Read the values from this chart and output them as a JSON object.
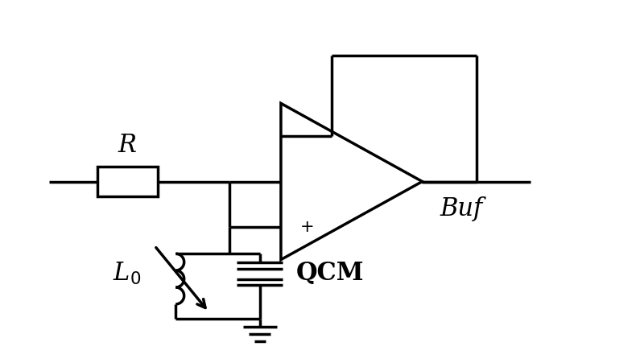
{
  "bg_color": "#ffffff",
  "line_color": "#000000",
  "lw": 2.5,
  "fig_width": 7.95,
  "fig_height": 4.51,
  "R_label": "R",
  "L0_label": "L$_0$",
  "QCM_label": "QCM",
  "Buf_label": "Buf"
}
